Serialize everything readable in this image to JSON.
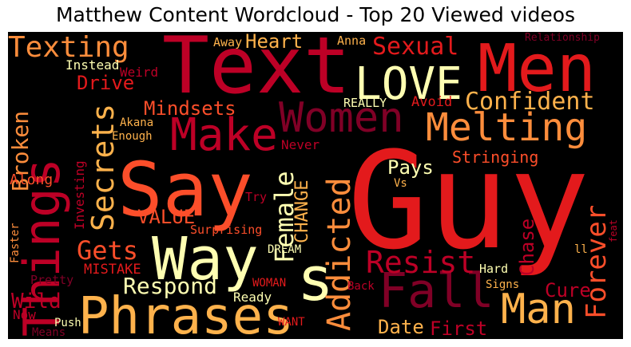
{
  "title": "Matthew Content Wordcloud - Top 20 Viewed videos",
  "colors": {
    "background": "#000000",
    "dark_red": "#800026",
    "crimson": "#bd0026",
    "red": "#e31a1c",
    "orange_red": "#fc4e2a",
    "orange": "#fd8d3c",
    "light_orange": "#feb24c",
    "pale_yellow": "#ffffb2"
  },
  "words": {
    "guy": "Guy",
    "text": "Text",
    "men": "Men",
    "say": "Say",
    "way": "Way",
    "things": "Things",
    "phrases": "Phrases",
    "love": "LOVE",
    "melting": "Melting",
    "make": "Make",
    "women": "Women",
    "fall": "Fall",
    "man": "Man",
    "texting": "Texting",
    "sexual": "Sexual",
    "confident": "Confident",
    "secrets": "Secrets",
    "s": "s",
    "addicted": "Addicted",
    "female": "Female",
    "resist": "Resist",
    "forever": "Forever",
    "respond": "Respond",
    "broken": "Broken",
    "heart": "Heart",
    "drive": "Drive",
    "mindsets": "Mindsets",
    "gets": "Gets",
    "wild": "Wild",
    "value": "VALUE",
    "change": "CHANGE",
    "pays": "Pays",
    "date": "Date",
    "first": "First",
    "cure": "Cure",
    "chase": "Chase",
    "stringing": "Stringing",
    "never": "Never",
    "avoid": "Avoid",
    "really": "REALLY",
    "weird": "Weird",
    "instead": "Instead",
    "away": "Away",
    "anna": "Anna",
    "relationship": "Relationship",
    "akana": "Akana",
    "enough": "Enough",
    "along": "Along",
    "investing": "Investing",
    "try": "Try",
    "surprising": "Surprising",
    "mistake": "MISTAKE",
    "dream": "DREAM",
    "pretty": "Pretty",
    "woman": "WOMAN",
    "ready": "Ready",
    "now": "Now",
    "push": "Push",
    "means": "Means",
    "want": "WANT",
    "faster": "Faster",
    "back": "Back",
    "hard": "Hard",
    "signs": "Signs",
    "vs": "Vs",
    "ll": "ll",
    "feat": "feat"
  }
}
